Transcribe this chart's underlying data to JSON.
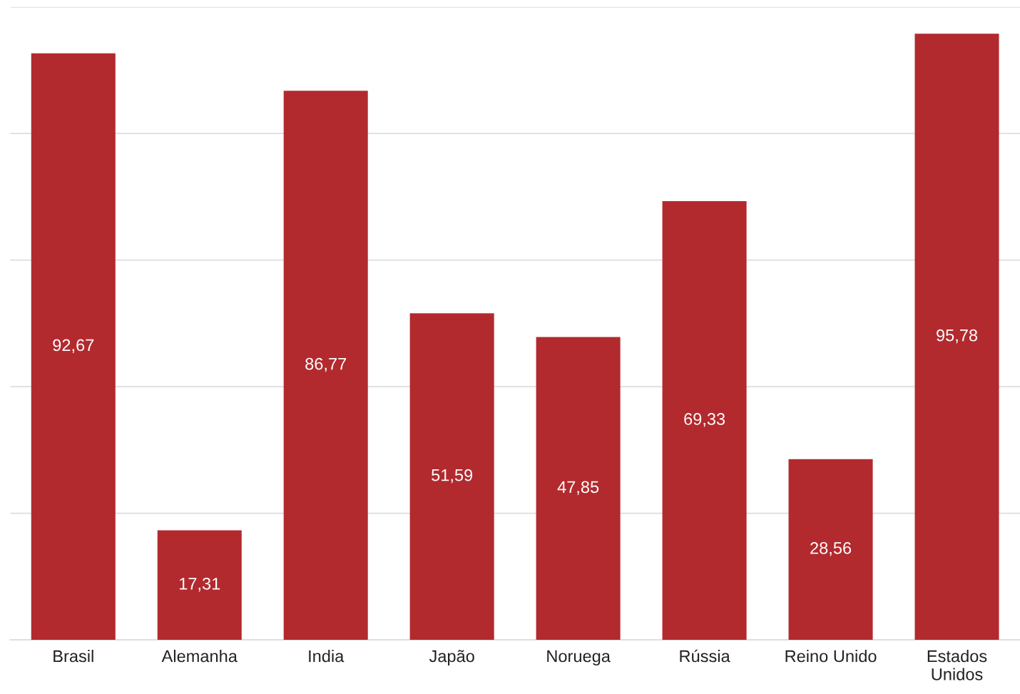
{
  "chart_data": {
    "type": "bar",
    "categories": [
      "Brasil",
      "Alemanha",
      "India",
      "Japão",
      "Noruega",
      "Rússia",
      "Reino Unido",
      "Estados Unidos"
    ],
    "values": [
      92.67,
      17.31,
      86.77,
      51.59,
      47.85,
      69.33,
      28.56,
      95.78
    ],
    "value_labels": [
      "92,67",
      "17,31",
      "86,77",
      "51,59",
      "47,85",
      "69,33",
      "28,56",
      "95,78"
    ],
    "color": "#b22a2e",
    "ylim": [
      0,
      100
    ],
    "yticks": [
      {
        "value": 0,
        "label": null
      },
      {
        "value": 20,
        "label": null
      },
      {
        "value": 40,
        "label": null
      },
      {
        "value": 60,
        "label": null
      },
      {
        "value": 80,
        "label": null
      },
      {
        "value": 100,
        "label": null
      }
    ],
    "grid": "y",
    "legend": false
  }
}
